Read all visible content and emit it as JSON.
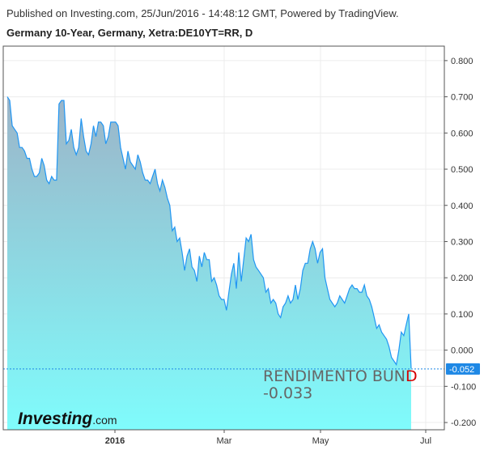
{
  "header": {
    "published": "Published on Investing.com, 25/Jun/2016 - 14:48:12 GMT, Powered by TradingView.",
    "title": "Germany 10-Year, Germany, Xetra:DE10YT=RR, D"
  },
  "annotation": {
    "line1_main": "RENDIMENTO BUN",
    "line1_accent": "D",
    "line2": "-0.033"
  },
  "logo": {
    "brand": "Investing",
    "suffix": ".com"
  },
  "last_value_label": "-0.052",
  "colors": {
    "line": "#2196f3",
    "fill_top": "#9cb4c8",
    "fill_bottom": "#7ffcfc",
    "last_tag_bg": "#1e88e5",
    "annotation_accent": "#d40000"
  },
  "chart_data": {
    "type": "area",
    "ylim": [
      -0.22,
      0.84
    ],
    "y_ticks": [
      "0.800",
      "0.700",
      "0.600",
      "0.500",
      "0.400",
      "0.300",
      "0.200",
      "0.100",
      "0.000",
      "-0.100",
      "-0.200"
    ],
    "x_ticks": [
      "2016",
      "Mar",
      "May",
      "Jul"
    ],
    "last_value": -0.052,
    "values": [
      0.7,
      0.69,
      0.62,
      0.61,
      0.6,
      0.56,
      0.56,
      0.55,
      0.53,
      0.53,
      0.5,
      0.48,
      0.48,
      0.49,
      0.53,
      0.51,
      0.47,
      0.46,
      0.48,
      0.47,
      0.47,
      0.68,
      0.69,
      0.69,
      0.57,
      0.58,
      0.61,
      0.56,
      0.54,
      0.56,
      0.64,
      0.59,
      0.55,
      0.54,
      0.57,
      0.62,
      0.59,
      0.63,
      0.63,
      0.62,
      0.57,
      0.59,
      0.63,
      0.63,
      0.63,
      0.62,
      0.56,
      0.53,
      0.5,
      0.55,
      0.52,
      0.51,
      0.5,
      0.54,
      0.52,
      0.49,
      0.47,
      0.47,
      0.46,
      0.48,
      0.5,
      0.46,
      0.44,
      0.47,
      0.45,
      0.42,
      0.4,
      0.33,
      0.34,
      0.3,
      0.31,
      0.27,
      0.22,
      0.26,
      0.28,
      0.23,
      0.22,
      0.19,
      0.26,
      0.23,
      0.27,
      0.25,
      0.25,
      0.19,
      0.2,
      0.18,
      0.15,
      0.14,
      0.14,
      0.11,
      0.16,
      0.21,
      0.24,
      0.17,
      0.27,
      0.19,
      0.25,
      0.31,
      0.3,
      0.32,
      0.25,
      0.23,
      0.22,
      0.21,
      0.2,
      0.16,
      0.17,
      0.13,
      0.14,
      0.13,
      0.1,
      0.09,
      0.12,
      0.13,
      0.15,
      0.13,
      0.14,
      0.18,
      0.14,
      0.17,
      0.22,
      0.24,
      0.24,
      0.28,
      0.3,
      0.28,
      0.24,
      0.27,
      0.28,
      0.2,
      0.17,
      0.14,
      0.13,
      0.12,
      0.13,
      0.15,
      0.14,
      0.13,
      0.15,
      0.17,
      0.18,
      0.17,
      0.17,
      0.16,
      0.16,
      0.18,
      0.15,
      0.14,
      0.12,
      0.09,
      0.06,
      0.07,
      0.05,
      0.04,
      0.03,
      0.01,
      -0.02,
      -0.03,
      -0.04,
      0.0,
      0.05,
      0.04,
      0.07,
      0.1,
      -0.05
    ]
  }
}
